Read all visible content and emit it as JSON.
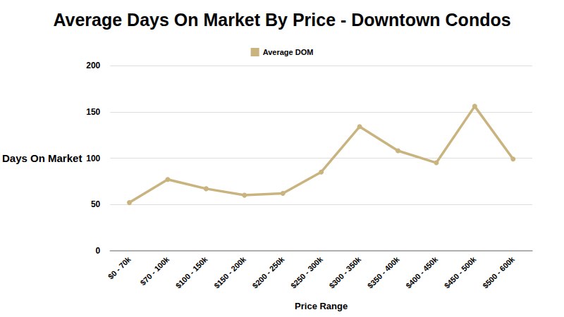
{
  "chart_data": {
    "type": "line",
    "title": "Average Days On Market By Price - Downtown Condos",
    "x_label": "Price Range",
    "y_label": "Days On Market",
    "categories": [
      "$0 - 70k",
      "$70 - 100k",
      "$100 - 150k",
      "$150 - 200k",
      "$200 - 250k",
      "$250 - 300k",
      "$300 - 350k",
      "$350 - 400k",
      "$400 - 450k",
      "$450 - 500k",
      "$500 - 600k"
    ],
    "series": [
      {
        "name": "Average DOM",
        "color": "#c9b37e",
        "values": [
          52,
          77,
          67,
          60,
          62,
          85,
          134,
          108,
          95,
          156,
          99
        ]
      }
    ],
    "ylim": [
      0,
      200
    ],
    "yticks": [
      0,
      50,
      100,
      150,
      200
    ],
    "grid": true,
    "legend": "top",
    "marker": "circle"
  }
}
